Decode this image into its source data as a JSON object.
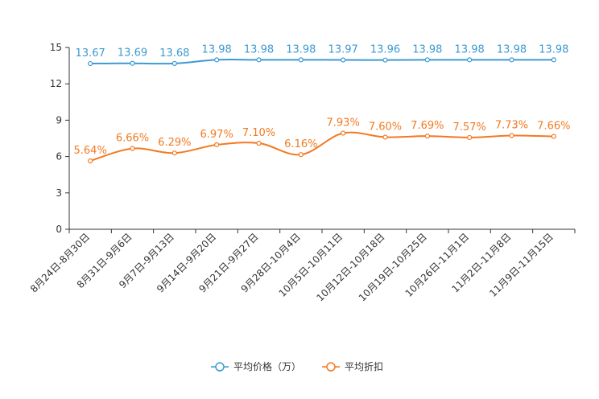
{
  "chart_data": {
    "type": "line",
    "title": "",
    "xlabel": "",
    "ylabel": "",
    "ylim": [
      0,
      15
    ],
    "yticks": [
      0,
      3,
      6,
      9,
      12,
      15
    ],
    "grid": false,
    "legend_position": "bottom-center",
    "categories": [
      "8月24日-8月30日",
      "8月31日-9月6日",
      "9月7日-9月13日",
      "9月14日-9月20日",
      "9月21日-9月27日",
      "9月28日-10月4日",
      "10月5日-10月11日",
      "10月12日-10月18日",
      "10月19日-10月25日",
      "10月26日-11月1日",
      "11月2日-11月8日",
      "11月9日-11月15日"
    ],
    "series": [
      {
        "name": "平均价格（万）",
        "color": "#3d9ad1",
        "values": [
          13.67,
          13.69,
          13.68,
          13.98,
          13.98,
          13.98,
          13.97,
          13.96,
          13.98,
          13.98,
          13.98,
          13.98
        ],
        "labels": [
          "13.67",
          "13.69",
          "13.68",
          "13.98",
          "13.98",
          "13.98",
          "13.97",
          "13.96",
          "13.98",
          "13.98",
          "13.98",
          "13.98"
        ]
      },
      {
        "name": "平均折扣",
        "color": "#f47920",
        "values": [
          5.64,
          6.66,
          6.29,
          6.97,
          7.1,
          6.16,
          7.93,
          7.6,
          7.69,
          7.57,
          7.73,
          7.66
        ],
        "labels": [
          "5.64%",
          "6.66%",
          "6.29%",
          "6.97%",
          "7.10%",
          "6.16%",
          "7.93%",
          "7.60%",
          "7.69%",
          "7.57%",
          "7.73%",
          "7.66%"
        ]
      }
    ]
  }
}
